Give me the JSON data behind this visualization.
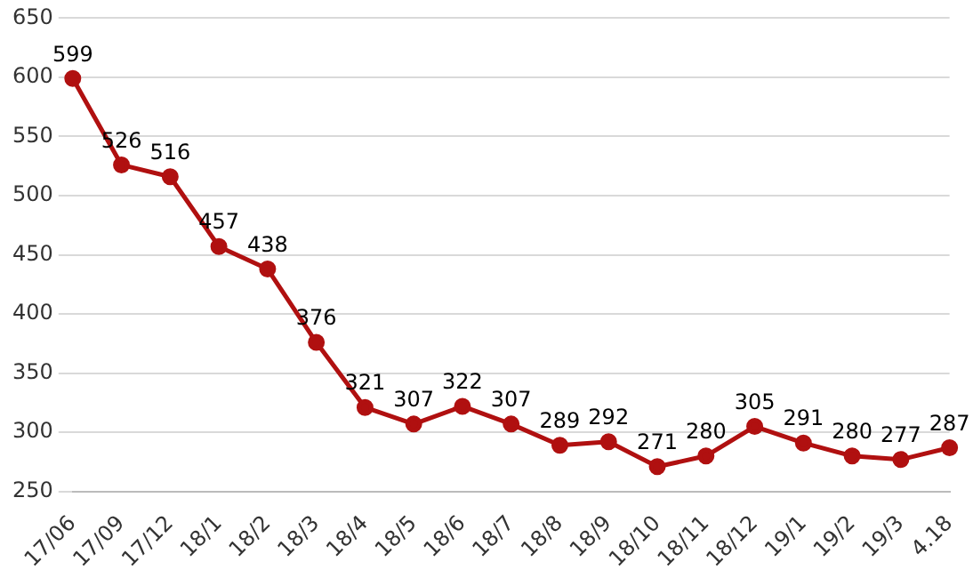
{
  "chart_data": {
    "type": "line",
    "categories": [
      "17/06",
      "17/09",
      "17/12",
      "18/1",
      "18/2",
      "18/3",
      "18/4",
      "18/5",
      "18/6",
      "18/7",
      "18/8",
      "18/9",
      "18/10",
      "18/11",
      "18/12",
      "19/1",
      "19/2",
      "19/3",
      "4.18"
    ],
    "series": [
      {
        "color": "#b01010",
        "values": [
          599,
          526,
          516,
          457,
          438,
          376,
          321,
          307,
          322,
          307,
          289,
          292,
          271,
          280,
          305,
          291,
          280,
          277,
          287
        ]
      }
    ],
    "ylim": [
      250,
      650
    ],
    "yticks": [
      250,
      300,
      350,
      400,
      450,
      500,
      550,
      600,
      650
    ],
    "grid": "y",
    "legend": false,
    "marker": "circle",
    "line_style": "solid",
    "data_labels": true
  }
}
